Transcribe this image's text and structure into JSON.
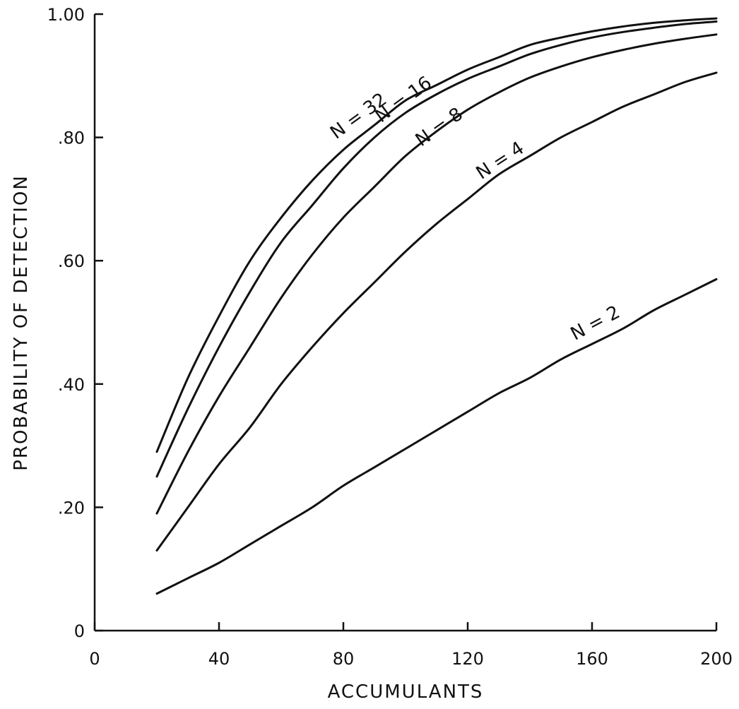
{
  "chart_data": {
    "type": "line",
    "title": "",
    "xlabel": "ACCUMULANTS",
    "ylabel": "PROBABILITY OF DETECTION",
    "xlim": [
      0,
      200
    ],
    "ylim": [
      0,
      1.0
    ],
    "x_ticks": [
      0,
      40,
      80,
      120,
      160,
      200
    ],
    "x_tick_labels": [
      "0",
      "40",
      "80",
      "120",
      "160",
      "200"
    ],
    "y_ticks": [
      0,
      0.2,
      0.4,
      0.6,
      0.8,
      1.0
    ],
    "y_tick_labels": [
      "0",
      ".20",
      ".40",
      ".60",
      ".80",
      "1.00"
    ],
    "grid": false,
    "legend": "none",
    "x": [
      20,
      30,
      40,
      50,
      60,
      70,
      80,
      90,
      100,
      110,
      120,
      130,
      140,
      150,
      160,
      170,
      180,
      190,
      200
    ],
    "series": [
      {
        "name": "N = 32",
        "values": [
          0.29,
          0.41,
          0.51,
          0.6,
          0.67,
          0.73,
          0.78,
          0.82,
          0.86,
          0.885,
          0.91,
          0.93,
          0.95,
          0.962,
          0.972,
          0.98,
          0.986,
          0.99,
          0.993
        ]
      },
      {
        "name": "N = 16",
        "values": [
          0.25,
          0.36,
          0.46,
          0.55,
          0.63,
          0.69,
          0.75,
          0.8,
          0.84,
          0.87,
          0.895,
          0.915,
          0.935,
          0.95,
          0.962,
          0.971,
          0.978,
          0.984,
          0.988
        ]
      },
      {
        "name": "N = 8",
        "values": [
          0.19,
          0.29,
          0.38,
          0.46,
          0.54,
          0.61,
          0.67,
          0.72,
          0.77,
          0.81,
          0.845,
          0.873,
          0.897,
          0.915,
          0.93,
          0.942,
          0.952,
          0.96,
          0.967
        ]
      },
      {
        "name": "N = 4",
        "values": [
          0.13,
          0.2,
          0.27,
          0.33,
          0.4,
          0.46,
          0.515,
          0.565,
          0.615,
          0.66,
          0.7,
          0.74,
          0.77,
          0.8,
          0.825,
          0.85,
          0.87,
          0.89,
          0.905
        ]
      },
      {
        "name": "N = 2",
        "values": [
          0.06,
          0.085,
          0.11,
          0.14,
          0.17,
          0.2,
          0.235,
          0.265,
          0.295,
          0.325,
          0.355,
          0.385,
          0.41,
          0.44,
          0.465,
          0.49,
          0.52,
          0.545,
          0.57
        ]
      }
    ]
  }
}
